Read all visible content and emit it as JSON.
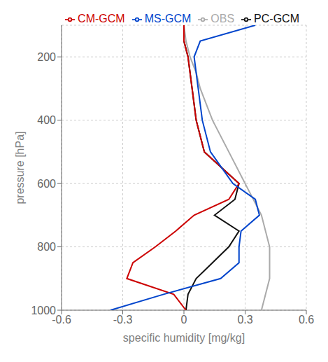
{
  "chart_data": {
    "type": "line",
    "xlabel": "specific  humidity  [mg/kg]",
    "ylabel": "pressure [hPa]",
    "xlim": [
      -0.6,
      0.6
    ],
    "ylim": [
      1000,
      100
    ],
    "xticks": [
      -0.6,
      -0.3,
      0,
      0.3,
      0.6
    ],
    "yticks": [
      200,
      400,
      600,
      800,
      1000
    ],
    "grid": true,
    "legend": "upper right",
    "series": [
      {
        "name": "OBS",
        "color": "#aaaaaa",
        "x": [
          0.0,
          0.01,
          0.03,
          0.06,
          0.08,
          0.14,
          0.22,
          0.3,
          0.38,
          0.42,
          0.42,
          0.38
        ],
        "y": [
          100,
          150,
          200,
          250,
          300,
          400,
          500,
          600,
          700,
          800,
          900,
          1000
        ]
      },
      {
        "name": "PC-GCM",
        "color": "#111111",
        "x": [
          0.0,
          0.0,
          0.02,
          0.03,
          0.04,
          0.06,
          0.1,
          0.27,
          0.25,
          0.15,
          0.27,
          0.22,
          0.14,
          0.06,
          0.02,
          0.01
        ],
        "y": [
          100,
          150,
          200,
          250,
          300,
          400,
          500,
          600,
          650,
          700,
          750,
          800,
          850,
          900,
          950,
          1000
        ]
      },
      {
        "name": "CM-GCM",
        "color": "#cc0000",
        "x": [
          0.0,
          0.0,
          0.02,
          0.03,
          0.04,
          0.06,
          0.1,
          0.27,
          0.22,
          0.05,
          -0.04,
          -0.14,
          -0.25,
          -0.28,
          -0.05,
          0.01
        ],
        "y": [
          100,
          150,
          200,
          250,
          300,
          400,
          500,
          600,
          650,
          700,
          750,
          800,
          850,
          900,
          950,
          1000
        ]
      },
      {
        "name": "MS-GCM",
        "color": "#0044cc",
        "x": [
          0.35,
          0.08,
          0.05,
          0.06,
          0.07,
          0.09,
          0.13,
          0.24,
          0.35,
          0.37,
          0.28,
          0.27,
          0.27,
          0.18,
          -0.1,
          -0.36
        ],
        "y": [
          100,
          150,
          200,
          250,
          300,
          400,
          500,
          600,
          650,
          700,
          750,
          800,
          850,
          900,
          950,
          1000
        ]
      }
    ]
  }
}
